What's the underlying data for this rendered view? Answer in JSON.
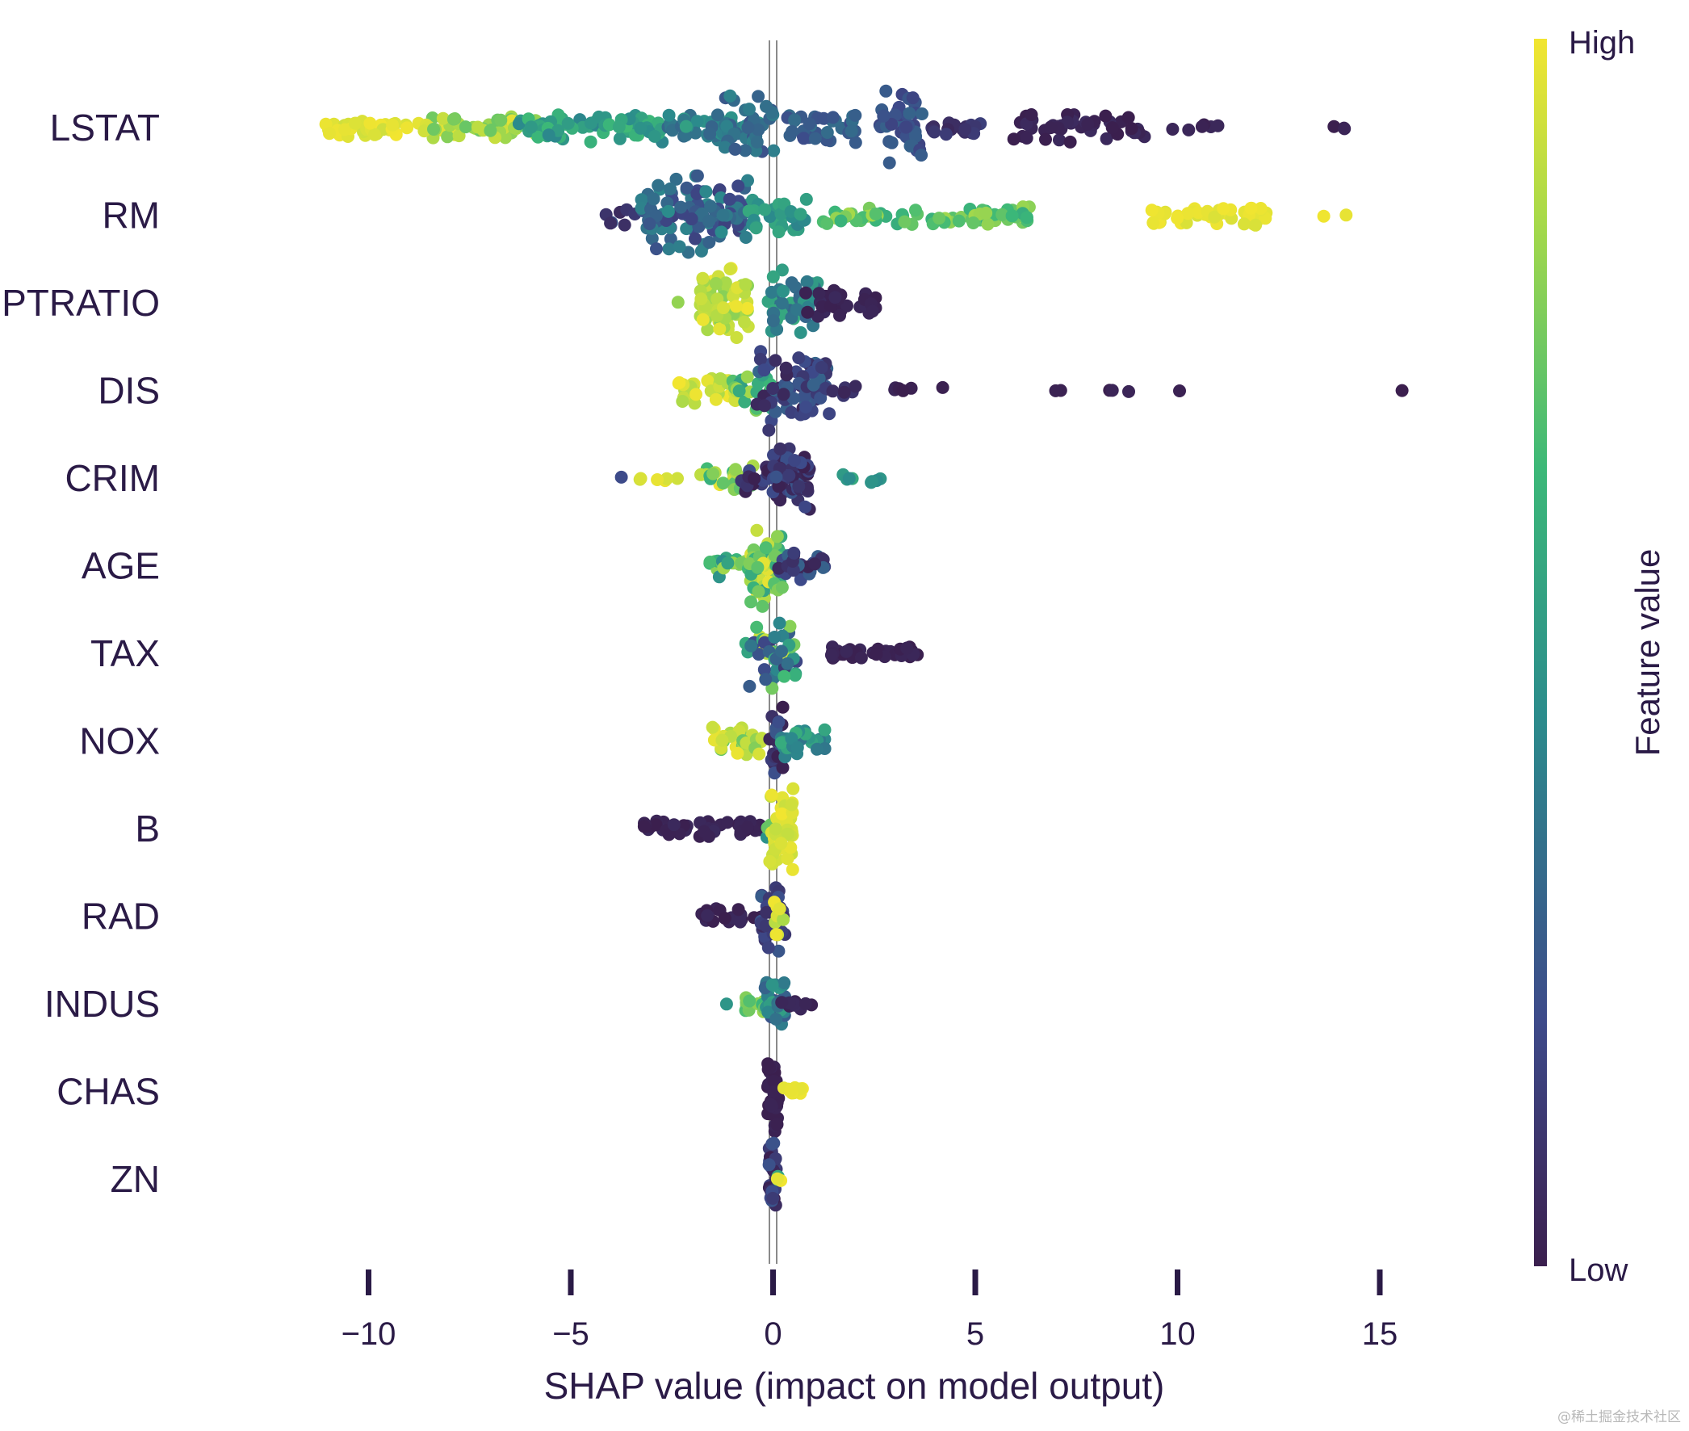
{
  "chart_data": {
    "type": "scatter",
    "subtype": "shap-beeswarm",
    "xlabel": "SHAP value (impact on model output)",
    "xlim": [
      -10.5,
      17.5
    ],
    "xticks": [
      -10,
      -5,
      0,
      5,
      10,
      15
    ],
    "xtick_labels": [
      "−10",
      "−5",
      "0",
      "5",
      "10",
      "15"
    ],
    "colorbar": {
      "title": "Feature value",
      "high": "High",
      "low": "Low",
      "colors": [
        "#3b1f4e",
        "#3d4a8a",
        "#2b8c8c",
        "#3cb878",
        "#a6d94a",
        "#f2e530"
      ]
    },
    "features": [
      {
        "name": "LSTAT",
        "clusters": [
          {
            "x0": -11.3,
            "x1": -8.5,
            "n": 40,
            "h": 0.35,
            "c0": 0.93,
            "c1": 1.0
          },
          {
            "x0": -8.7,
            "x1": -5.8,
            "n": 55,
            "h": 0.4,
            "c0": 0.72,
            "c1": 0.97
          },
          {
            "x0": -6.3,
            "x1": -2.7,
            "n": 70,
            "h": 0.5,
            "c0": 0.42,
            "c1": 0.66
          },
          {
            "x0": -2.6,
            "x1": -0.3,
            "n": 50,
            "h": 0.45,
            "c0": 0.3,
            "c1": 0.55
          },
          {
            "x0": -1.2,
            "x1": 0.05,
            "n": 35,
            "h": 1.3,
            "c0": 0.22,
            "c1": 0.42
          },
          {
            "x0": 0.2,
            "x1": 2.1,
            "n": 35,
            "h": 0.55,
            "c0": 0.2,
            "c1": 0.35
          },
          {
            "x0": 2.6,
            "x1": 3.7,
            "n": 45,
            "h": 1.2,
            "c0": 0.17,
            "c1": 0.3
          },
          {
            "x0": 3.8,
            "x1": 5.2,
            "n": 20,
            "h": 0.3,
            "c0": 0.04,
            "c1": 0.16
          },
          {
            "x0": 5.8,
            "x1": 9.2,
            "n": 45,
            "h": 0.55,
            "c0": 0.0,
            "c1": 0.06
          },
          {
            "x0": 9.6,
            "x1": 11.2,
            "n": 6,
            "h": 0.15,
            "c0": 0.0,
            "c1": 0.04
          },
          {
            "x0": 12.8,
            "x1": 14.4,
            "n": 3,
            "h": 0.05,
            "c0": 0.0,
            "c1": 0.03
          }
        ]
      },
      {
        "name": "RM",
        "clusters": [
          {
            "x0": -4.2,
            "x1": -3.0,
            "n": 8,
            "h": 0.4,
            "c0": 0.05,
            "c1": 0.25
          },
          {
            "x0": -3.3,
            "x1": -0.6,
            "n": 110,
            "h": 1.3,
            "c0": 0.15,
            "c1": 0.45
          },
          {
            "x0": -0.6,
            "x1": 1.0,
            "n": 30,
            "h": 0.6,
            "c0": 0.42,
            "c1": 0.58
          },
          {
            "x0": 1.2,
            "x1": 6.4,
            "n": 70,
            "h": 0.35,
            "c0": 0.6,
            "c1": 0.85
          },
          {
            "x0": 9.3,
            "x1": 12.3,
            "n": 55,
            "h": 0.35,
            "c0": 0.95,
            "c1": 1.0
          },
          {
            "x0": 13.6,
            "x1": 14.2,
            "n": 2,
            "h": 0.05,
            "c0": 0.97,
            "c1": 1.0
          }
        ]
      },
      {
        "name": "PTRATIO",
        "clusters": [
          {
            "x0": -2.4,
            "x1": -2.3,
            "n": 1,
            "h": 0.05,
            "c0": 0.8,
            "c1": 0.82
          },
          {
            "x0": -1.8,
            "x1": -0.6,
            "n": 70,
            "h": 1.2,
            "c0": 0.78,
            "c1": 1.0
          },
          {
            "x0": -0.2,
            "x1": 1.1,
            "n": 45,
            "h": 1.1,
            "c0": 0.3,
            "c1": 0.6
          },
          {
            "x0": 0.8,
            "x1": 2.6,
            "n": 30,
            "h": 0.5,
            "c0": 0.0,
            "c1": 0.05
          }
        ]
      },
      {
        "name": "DIS",
        "clusters": [
          {
            "x0": -2.4,
            "x1": -0.9,
            "n": 35,
            "h": 0.5,
            "c0": 0.85,
            "c1": 1.0
          },
          {
            "x0": -1.0,
            "x1": 0.0,
            "n": 25,
            "h": 0.9,
            "c0": 0.5,
            "c1": 0.85
          },
          {
            "x0": -0.4,
            "x1": 1.4,
            "n": 75,
            "h": 1.35,
            "c0": 0.03,
            "c1": 0.32
          },
          {
            "x0": 1.4,
            "x1": 2.1,
            "n": 6,
            "h": 0.2,
            "c0": 0.02,
            "c1": 0.15
          },
          {
            "x0": 2.7,
            "x1": 4.2,
            "n": 6,
            "h": 0.1,
            "c0": 0.0,
            "c1": 0.05
          },
          {
            "x0": 6.5,
            "x1": 7.2,
            "n": 2,
            "h": 0.05,
            "c0": 0.0,
            "c1": 0.03
          },
          {
            "x0": 8.2,
            "x1": 8.8,
            "n": 3,
            "h": 0.05,
            "c0": 0.0,
            "c1": 0.03
          },
          {
            "x0": 10.0,
            "x1": 10.1,
            "n": 1,
            "h": 0.05,
            "c0": 0.0,
            "c1": 0.02
          },
          {
            "x0": 15.5,
            "x1": 15.6,
            "n": 1,
            "h": 0.05,
            "c0": 0.0,
            "c1": 0.02
          }
        ]
      },
      {
        "name": "CRIM",
        "clusters": [
          {
            "x0": -3.8,
            "x1": -3.7,
            "n": 1,
            "h": 0.05,
            "c0": 0.2,
            "c1": 0.25
          },
          {
            "x0": -3.3,
            "x1": -2.3,
            "n": 6,
            "h": 0.1,
            "c0": 0.93,
            "c1": 1.0
          },
          {
            "x0": -1.8,
            "x1": -0.4,
            "n": 25,
            "h": 0.4,
            "c0": 0.6,
            "c1": 1.0
          },
          {
            "x0": -0.8,
            "x1": 0.0,
            "n": 15,
            "h": 0.5,
            "c0": 0.0,
            "c1": 0.2
          },
          {
            "x0": 0.0,
            "x1": 0.9,
            "n": 60,
            "h": 1.3,
            "c0": 0.0,
            "c1": 0.25
          },
          {
            "x0": 1.7,
            "x1": 2.7,
            "n": 8,
            "h": 0.2,
            "c0": 0.45,
            "c1": 0.6
          }
        ]
      },
      {
        "name": "AGE",
        "clusters": [
          {
            "x0": -1.6,
            "x1": -0.5,
            "n": 20,
            "h": 0.4,
            "c0": 0.45,
            "c1": 0.85
          },
          {
            "x0": -0.6,
            "x1": 0.3,
            "n": 60,
            "h": 1.4,
            "c0": 0.55,
            "c1": 1.0
          },
          {
            "x0": 0.1,
            "x1": 1.4,
            "n": 30,
            "h": 0.55,
            "c0": 0.0,
            "c1": 0.3
          }
        ]
      },
      {
        "name": "TAX",
        "clusters": [
          {
            "x0": -0.7,
            "x1": 0.6,
            "n": 45,
            "h": 1.3,
            "c0": 0.1,
            "c1": 0.95
          },
          {
            "x0": 1.4,
            "x1": 3.7,
            "n": 40,
            "h": 0.25,
            "c0": 0.0,
            "c1": 0.04
          }
        ]
      },
      {
        "name": "NOX",
        "clusters": [
          {
            "x0": -1.5,
            "x1": -0.2,
            "n": 35,
            "h": 0.5,
            "c0": 0.72,
            "c1": 1.0
          },
          {
            "x0": -0.1,
            "x1": 0.3,
            "n": 25,
            "h": 1.3,
            "c0": 0.0,
            "c1": 0.25
          },
          {
            "x0": 0.2,
            "x1": 1.3,
            "n": 30,
            "h": 0.55,
            "c0": 0.35,
            "c1": 0.6
          }
        ]
      },
      {
        "name": "B",
        "clusters": [
          {
            "x0": -3.2,
            "x1": -0.3,
            "n": 50,
            "h": 0.3,
            "c0": 0.0,
            "c1": 0.05
          },
          {
            "x0": -0.2,
            "x1": 0.1,
            "n": 6,
            "h": 0.3,
            "c0": 0.45,
            "c1": 0.75
          },
          {
            "x0": -0.1,
            "x1": 0.5,
            "n": 45,
            "h": 1.4,
            "c0": 0.9,
            "c1": 1.0
          }
        ]
      },
      {
        "name": "RAD",
        "clusters": [
          {
            "x0": -1.8,
            "x1": -0.2,
            "n": 18,
            "h": 0.25,
            "c0": 0.0,
            "c1": 0.05
          },
          {
            "x0": -0.3,
            "x1": 0.3,
            "n": 30,
            "h": 1.2,
            "c0": 0.05,
            "c1": 0.3
          },
          {
            "x0": 0.0,
            "x1": 0.3,
            "n": 8,
            "h": 1.0,
            "c0": 0.85,
            "c1": 1.0
          }
        ]
      },
      {
        "name": "INDUS",
        "clusters": [
          {
            "x0": -1.2,
            "x1": -1.1,
            "n": 1,
            "h": 0.05,
            "c0": 0.45,
            "c1": 0.5
          },
          {
            "x0": -0.7,
            "x1": 0.0,
            "n": 15,
            "h": 0.4,
            "c0": 0.55,
            "c1": 0.85
          },
          {
            "x0": -0.2,
            "x1": 0.3,
            "n": 30,
            "h": 1.2,
            "c0": 0.2,
            "c1": 0.6
          },
          {
            "x0": 0.2,
            "x1": 1.0,
            "n": 10,
            "h": 0.2,
            "c0": 0.0,
            "c1": 0.05
          }
        ]
      },
      {
        "name": "CHAS",
        "clusters": [
          {
            "x0": -0.15,
            "x1": 0.15,
            "n": 40,
            "h": 1.4,
            "c0": 0.0,
            "c1": 0.03
          },
          {
            "x0": 0.2,
            "x1": 0.9,
            "n": 10,
            "h": 0.2,
            "c0": 0.97,
            "c1": 1.0
          }
        ]
      },
      {
        "name": "ZN",
        "clusters": [
          {
            "x0": -0.1,
            "x1": 0.1,
            "n": 30,
            "h": 1.3,
            "c0": 0.0,
            "c1": 0.25
          },
          {
            "x0": 0.0,
            "x1": 0.2,
            "n": 3,
            "h": 0.2,
            "c0": 0.55,
            "c1": 0.65
          },
          {
            "x0": 0.1,
            "x1": 0.2,
            "n": 2,
            "h": 0.05,
            "c0": 0.97,
            "c1": 1.0
          }
        ]
      }
    ]
  },
  "watermark": "@稀土掘金技术社区"
}
